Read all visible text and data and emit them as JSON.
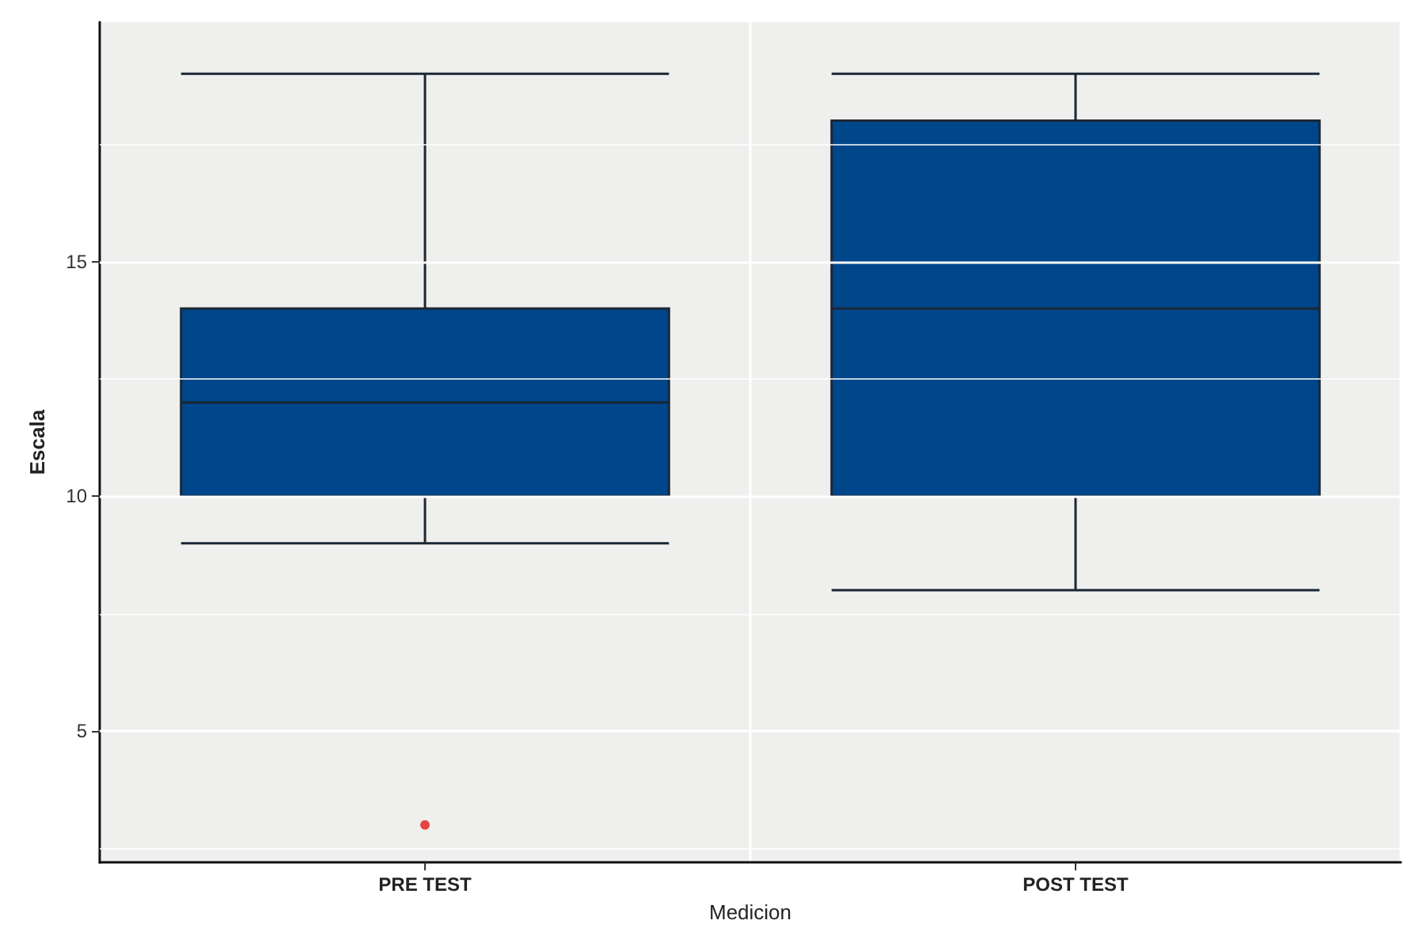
{
  "chart_data": {
    "type": "box",
    "xlabel": "Medicion",
    "ylabel": "Escala",
    "categories": [
      "PRE TEST",
      "POST TEST"
    ],
    "series": [
      {
        "color": "#00468b",
        "boxes": [
          {
            "low": 9,
            "q1": 10,
            "median": 12,
            "q3": 14,
            "high": 19,
            "outliers": [
              3
            ]
          },
          {
            "low": 8,
            "q1": 10,
            "median": 14,
            "q3": 18,
            "high": 19
          }
        ]
      }
    ],
    "ylim": [
      2.2,
      20.1
    ],
    "yticks": [
      5,
      10,
      15
    ],
    "grid": true
  }
}
